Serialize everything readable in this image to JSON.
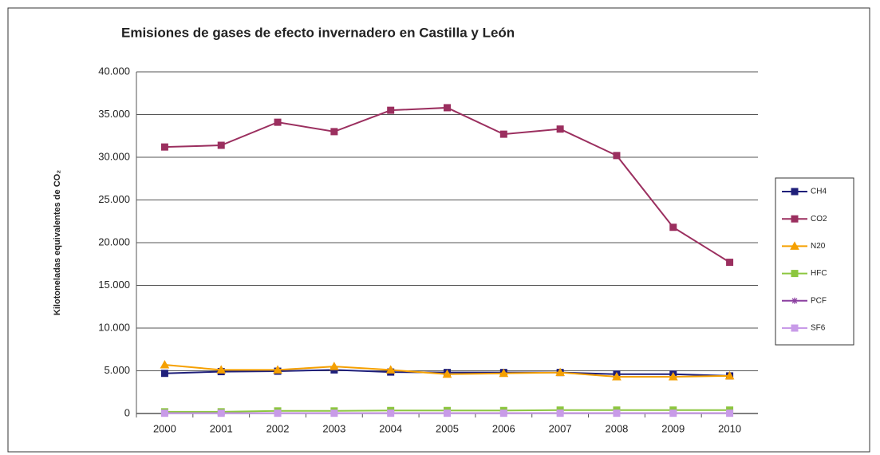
{
  "chart_data": {
    "type": "line",
    "title": "Emisiones de gases de efecto invernadero en Castilla y León",
    "y_label": "Kilotoneladas equivalentes de CO₂",
    "categories": [
      "2000",
      "2001",
      "2002",
      "2003",
      "2004",
      "2005",
      "2006",
      "2007",
      "2008",
      "2009",
      "2010"
    ],
    "series": [
      {
        "name": "CH4",
        "color": "#1f1f7a",
        "marker": "square",
        "values": [
          4700,
          4900,
          4950,
          5100,
          4850,
          4800,
          4800,
          4800,
          4600,
          4600,
          4400
        ]
      },
      {
        "name": "CO2",
        "color": "#9b2f5f",
        "marker": "square",
        "values": [
          31200,
          31400,
          34100,
          33000,
          35500,
          35800,
          32700,
          33300,
          30200,
          21800,
          17700
        ]
      },
      {
        "name": "N20",
        "color": "#f5a000",
        "marker": "triangle",
        "values": [
          5700,
          5100,
          5100,
          5500,
          5100,
          4600,
          4700,
          4800,
          4300,
          4300,
          4400
        ]
      },
      {
        "name": "HFC",
        "color": "#8cc63f",
        "marker": "square",
        "values": [
          200,
          200,
          300,
          300,
          350,
          350,
          350,
          400,
          400,
          400,
          400
        ]
      },
      {
        "name": "PCF",
        "color": "#8b3fa0",
        "marker": "star",
        "values": [
          50,
          50,
          50,
          50,
          50,
          50,
          50,
          50,
          50,
          50,
          50
        ]
      },
      {
        "name": "SF6",
        "color": "#c89be8",
        "marker": "square",
        "values": [
          30,
          30,
          30,
          30,
          30,
          30,
          30,
          30,
          30,
          30,
          30
        ]
      }
    ],
    "ylim": [
      0,
      40000
    ],
    "yticks": [
      0,
      {
        "value": 5000,
        "label": "5.000"
      },
      {
        "value": 10000,
        "label": "10.000"
      },
      {
        "value": 15000,
        "label": "15.000"
      },
      {
        "value": 20000,
        "label": "20.000"
      },
      {
        "value": 25000,
        "label": "25.000"
      },
      {
        "value": 30000,
        "label": "30.000"
      },
      {
        "value": 35000,
        "label": "35.000"
      },
      {
        "value": 40000,
        "label": "40.000"
      }
    ],
    "grid": true,
    "legend": "right"
  }
}
